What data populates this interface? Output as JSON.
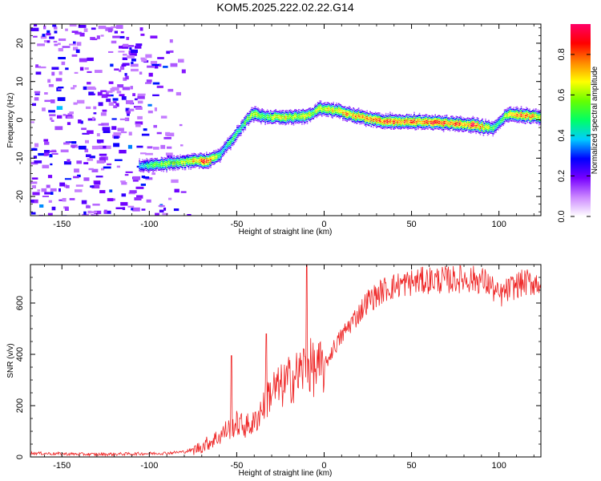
{
  "title": "KOM5.2025.222.02.22.G14",
  "colorbar": {
    "label": "Normalized spectral amplitude",
    "range": [
      0,
      0.95
    ],
    "ticks": [
      "0.0",
      "0.2",
      "0.4",
      "0.6",
      "0.8"
    ],
    "tick_values": [
      0,
      0.2,
      0.4,
      0.6,
      0.8
    ],
    "colors": [
      "#ffffff",
      "#cc88ff",
      "#7700ff",
      "#0000ff",
      "#00ccff",
      "#00ff66",
      "#66ff00",
      "#ffff00",
      "#ff8800",
      "#ff0000",
      "#ff0066"
    ]
  },
  "chart_data": [
    {
      "type": "heatmap",
      "xlabel": "Height of straight line (km)",
      "ylabel": "Frequency (Hz)",
      "xlim": [
        -168,
        124
      ],
      "ylim": [
        -25,
        25
      ],
      "xticks": [
        -150,
        -100,
        -50,
        0,
        50,
        100
      ],
      "xtick_labels": [
        "-150",
        "-100",
        "-50",
        "0",
        "50",
        "100"
      ],
      "yticks": [
        -20,
        -10,
        0,
        10,
        20
      ],
      "ytick_labels": [
        "-20",
        "-10",
        "0",
        "10",
        "20"
      ],
      "ridge": {
        "x": [
          -106,
          -95,
          -85,
          -75,
          -67,
          -60,
          -57,
          -53,
          -48,
          -44,
          -40,
          -35,
          -25,
          -15,
          -8,
          -3,
          0,
          8,
          15,
          25,
          35,
          45,
          55,
          65,
          75,
          85,
          92,
          97,
          100,
          104,
          110,
          124
        ],
        "freq": [
          -12,
          -11.5,
          -11,
          -10.5,
          -10.5,
          -9,
          -7,
          -5,
          -2,
          0.5,
          2,
          1,
          0.8,
          1,
          1.5,
          3,
          3,
          2.5,
          1.5,
          0.5,
          -0.3,
          -0.3,
          -0.3,
          -0.5,
          -0.8,
          -1.2,
          -1.8,
          -2,
          -0.5,
          1.5,
          1.5,
          0.8
        ],
        "amplitude": [
          0.4,
          0.55,
          0.6,
          0.7,
          0.85,
          0.5,
          0.45,
          0.5,
          0.45,
          0.55,
          0.65,
          0.5,
          0.7,
          0.6,
          0.65,
          0.6,
          0.65,
          0.7,
          0.75,
          0.75,
          0.8,
          0.85,
          0.8,
          0.85,
          0.8,
          0.85,
          0.7,
          0.5,
          0.45,
          0.6,
          0.85,
          0.65
        ]
      },
      "noise_region": {
        "x_range": [
          -168,
          -75
        ],
        "amplitude_range": [
          0.1,
          0.3
        ]
      }
    },
    {
      "type": "line",
      "xlabel": "Height of straight line (km)",
      "ylabel": "SNR (v/v)",
      "xlim": [
        -168,
        124
      ],
      "ylim": [
        0,
        750
      ],
      "xticks": [
        -150,
        -100,
        -50,
        0,
        50,
        100
      ],
      "xtick_labels": [
        "-150",
        "-100",
        "-50",
        "0",
        "50",
        "100"
      ],
      "yticks": [
        0,
        200,
        400,
        600
      ],
      "ytick_labels": [
        "0",
        "200",
        "400",
        "600"
      ],
      "line_color": "#ee2222",
      "series": [
        {
          "name": "SNR",
          "x": [
            -168,
            -150,
            -130,
            -110,
            -90,
            -80,
            -75,
            -70,
            -65,
            -60,
            -55,
            -50,
            -45,
            -40,
            -35,
            -30,
            -25,
            -20,
            -15,
            -10,
            -5,
            0,
            5,
            10,
            15,
            20,
            25,
            30,
            35,
            40,
            45,
            50,
            60,
            70,
            80,
            90,
            95,
            100,
            105,
            110,
            115,
            124
          ],
          "y": [
            15,
            12,
            10,
            12,
            15,
            20,
            28,
            40,
            60,
            80,
            110,
            130,
            120,
            130,
            200,
            260,
            270,
            300,
            320,
            360,
            340,
            350,
            420,
            470,
            520,
            560,
            610,
            630,
            655,
            665,
            675,
            680,
            690,
            690,
            695,
            690,
            670,
            625,
            650,
            670,
            680,
            680
          ]
        }
      ],
      "spikes": [
        {
          "x": -53,
          "y": 395
        },
        {
          "x": -33,
          "y": 480
        },
        {
          "x": -10,
          "y": 750
        }
      ]
    }
  ]
}
